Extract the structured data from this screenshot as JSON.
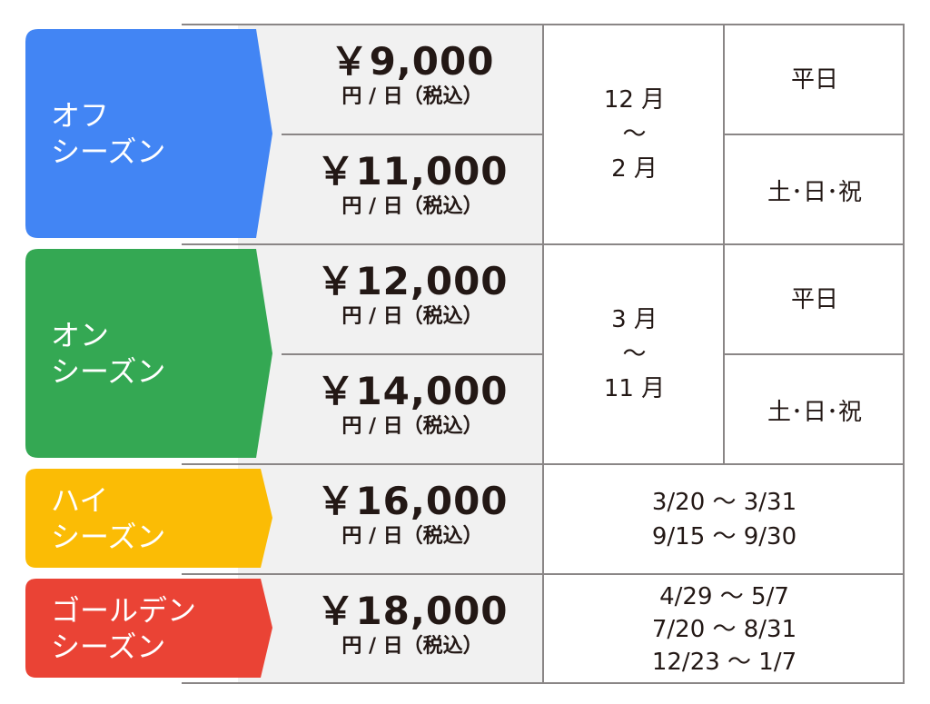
{
  "colors": {
    "off": "#4285F4",
    "on": "#34A853",
    "high": "#FBBC05",
    "golden": "#EA4335",
    "price_bg": "#F1F1F1",
    "rule": "#8A8686"
  },
  "seasons": [
    {
      "label_line1": "オフ",
      "label_line2": "シーズン",
      "rows": [
        {
          "price": "￥9,000",
          "unit": "円 / 日（税込）",
          "day_type": "平日"
        },
        {
          "price": "￥11,000",
          "unit": "円 / 日（税込）",
          "day_type": "土･日･祝"
        }
      ],
      "period": [
        "12 月",
        "～",
        "2 月"
      ]
    },
    {
      "label_line1": "オン",
      "label_line2": "シーズン",
      "rows": [
        {
          "price": "￥12,000",
          "unit": "円 / 日（税込）",
          "day_type": "平日"
        },
        {
          "price": "￥14,000",
          "unit": "円 / 日（税込）",
          "day_type": "土･日･祝"
        }
      ],
      "period": [
        "3 月",
        "～",
        "11 月"
      ]
    },
    {
      "label_line1": "ハイ",
      "label_line2": "シーズン",
      "rows": [
        {
          "price": "￥16,000",
          "unit": "円 / 日（税込）"
        }
      ],
      "period": [
        "3/20 ～ 3/31",
        "9/15 ～ 9/30"
      ]
    },
    {
      "label_line1": "ゴールデン",
      "label_line2": "シーズン",
      "rows": [
        {
          "price": "￥18,000",
          "unit": "円 / 日（税込）"
        }
      ],
      "period": [
        "4/29 ～ 5/7",
        "7/20 ～ 8/31",
        "12/23 ～ 1/7"
      ]
    }
  ]
}
